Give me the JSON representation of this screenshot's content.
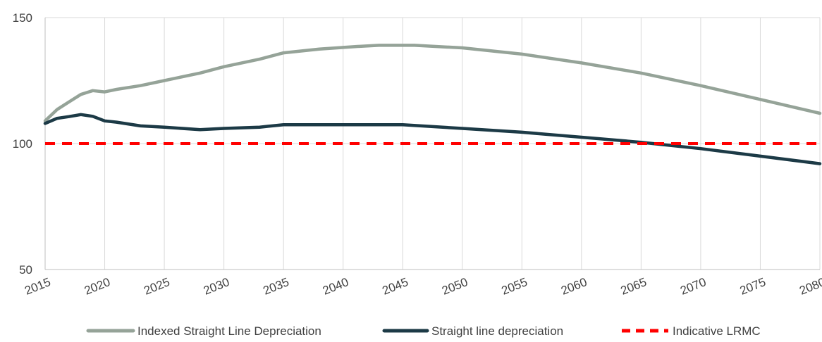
{
  "chart_data": {
    "type": "line",
    "title": "",
    "xlabel": "",
    "ylabel": "",
    "xlim": [
      2015,
      2080
    ],
    "ylim": [
      50,
      150
    ],
    "grid": true,
    "legend_position": "bottom",
    "x_ticks": [
      "2015",
      "2020",
      "2025",
      "2030",
      "2035",
      "2040",
      "2045",
      "2050",
      "2055",
      "2060",
      "2065",
      "2070",
      "2075",
      "2080"
    ],
    "y_ticks": [
      "50",
      "100",
      "150"
    ],
    "series": [
      {
        "name": "Indexed Straight Line Depreciation",
        "color": "#95a398",
        "style": "solid",
        "points": [
          [
            2015,
            109
          ],
          [
            2016,
            113.5
          ],
          [
            2017,
            116.5
          ],
          [
            2018,
            119.5
          ],
          [
            2019,
            121
          ],
          [
            2020,
            120.5
          ],
          [
            2021,
            121.5
          ],
          [
            2023,
            123
          ],
          [
            2025,
            125
          ],
          [
            2028,
            128
          ],
          [
            2030,
            130.5
          ],
          [
            2033,
            133.5
          ],
          [
            2035,
            136
          ],
          [
            2038,
            137.5
          ],
          [
            2041,
            138.5
          ],
          [
            2043,
            139
          ],
          [
            2046,
            139
          ],
          [
            2050,
            138
          ],
          [
            2055,
            135.5
          ],
          [
            2060,
            132
          ],
          [
            2065,
            128
          ],
          [
            2070,
            123
          ],
          [
            2075,
            117.5
          ],
          [
            2080,
            112
          ]
        ]
      },
      {
        "name": "Straight line depreciation",
        "color": "#1c3a46",
        "style": "solid",
        "points": [
          [
            2015,
            108
          ],
          [
            2016,
            110
          ],
          [
            2017,
            110.7
          ],
          [
            2018,
            111.5
          ],
          [
            2019,
            110.8
          ],
          [
            2020,
            109
          ],
          [
            2021,
            108.5
          ],
          [
            2023,
            107
          ],
          [
            2025,
            106.5
          ],
          [
            2028,
            105.5
          ],
          [
            2030,
            106
          ],
          [
            2033,
            106.5
          ],
          [
            2035,
            107.5
          ],
          [
            2040,
            107.5
          ],
          [
            2045,
            107.5
          ],
          [
            2050,
            106
          ],
          [
            2055,
            104.5
          ],
          [
            2060,
            102.5
          ],
          [
            2065,
            100.5
          ],
          [
            2070,
            98
          ],
          [
            2075,
            95
          ],
          [
            2080,
            92
          ]
        ]
      },
      {
        "name": "Indicative LRMC",
        "color": "#ff0000",
        "style": "dashed",
        "points": [
          [
            2015,
            100
          ],
          [
            2080,
            100
          ]
        ]
      }
    ]
  }
}
